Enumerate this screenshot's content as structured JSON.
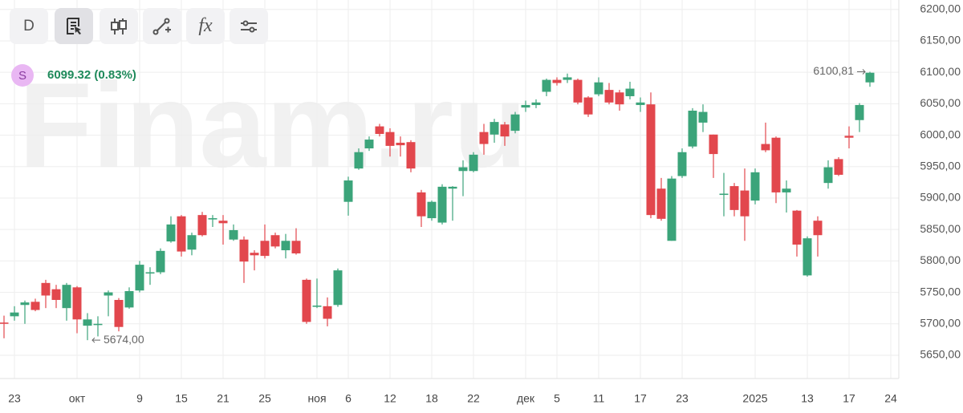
{
  "toolbar": {
    "interval": "D",
    "formula": "fx"
  },
  "watermark": "Finam.ru",
  "header": {
    "symbol": "S",
    "price": "6099.32",
    "change": "(0.83%)"
  },
  "chart_data": {
    "type": "candlestick",
    "categories": [
      null,
      "23",
      null,
      null,
      null,
      null,
      null,
      "окт",
      null,
      null,
      null,
      null,
      null,
      "9",
      null,
      null,
      null,
      "15",
      null,
      null,
      null,
      "21",
      null,
      null,
      null,
      "25",
      null,
      null,
      null,
      null,
      "ноя",
      null,
      null,
      "6",
      null,
      null,
      null,
      "12",
      null,
      null,
      null,
      "18",
      null,
      null,
      null,
      "22",
      null,
      null,
      null,
      null,
      "дек",
      null,
      null,
      "5",
      null,
      null,
      null,
      "11",
      null,
      null,
      null,
      "17",
      null,
      null,
      null,
      "23",
      null,
      null,
      null,
      null,
      null,
      null,
      "2025",
      null,
      null,
      null,
      null,
      "13",
      null,
      null,
      null,
      "17",
      null,
      null,
      null,
      "24"
    ],
    "open": [
      5702,
      5712,
      5730,
      5735,
      5765,
      5755,
      5725,
      5758,
      5697,
      5698,
      5745,
      5738,
      5726,
      5753,
      5780,
      5782,
      5831,
      5871,
      5818,
      5873,
      5866,
      5864,
      5834,
      5834,
      5813,
      5832,
      5841,
      5817,
      5832,
      5770,
      5727,
      5728,
      5730,
      5894,
      5947,
      5979,
      6014,
      6005,
      5988,
      5989,
      5909,
      5868,
      5861,
      5915,
      5943,
      5943,
      6005,
      6001,
      6017,
      6007,
      6044,
      6048,
      6069,
      6088,
      6088,
      6088,
      6060,
      6065,
      6072,
      6068,
      6062,
      6048,
      6049,
      5915,
      5832,
      5935,
      5982,
      6020,
      6001,
      5905,
      5919,
      5912,
      5896,
      5986,
      5996,
      5909,
      5880,
      5777,
      5864,
      5924,
      5962,
      5999,
      6024,
      6084,
      null,
      null
    ],
    "high": [
      5713,
      5728,
      5737,
      5740,
      5770,
      5762,
      5765,
      5760,
      5717,
      5712,
      5753,
      5741,
      5758,
      5800,
      5790,
      5820,
      5871,
      5873,
      5845,
      5878,
      5873,
      5873,
      5858,
      5839,
      5817,
      5858,
      5845,
      5843,
      5852,
      5772,
      5772,
      5742,
      5788,
      5934,
      5979,
      5998,
      6018,
      6011,
      5998,
      5992,
      5913,
      5896,
      5922,
      5919,
      5960,
      5973,
      6018,
      6026,
      6021,
      6037,
      6055,
      6057,
      6090,
      6092,
      6098,
      6090,
      6062,
      6092,
      6083,
      6072,
      6085,
      6060,
      6068,
      5932,
      5935,
      5979,
      6043,
      6049,
      6001,
      5940,
      5924,
      5947,
      5947,
      6020,
      5998,
      5928,
      5881,
      5839,
      5871,
      5960,
      5965,
      6014,
      6051,
      6100.81,
      null,
      null
    ],
    "low": [
      5677,
      5705,
      5700,
      5720,
      5725,
      5725,
      5705,
      5685,
      5674,
      5680,
      5712,
      5688,
      5724,
      5750,
      5762,
      5779,
      5829,
      5807,
      5809,
      5839,
      5854,
      5826,
      5832,
      5765,
      5785,
      5804,
      5820,
      5804,
      5810,
      5700,
      5725,
      5696,
      5727,
      5872,
      5945,
      5975,
      5998,
      5966,
      5966,
      5941,
      5854,
      5864,
      5858,
      5864,
      5903,
      5941,
      5969,
      5988,
      5983,
      6003,
      6037,
      6043,
      6062,
      6079,
      6083,
      6049,
      6029,
      6062,
      6049,
      6039,
      6057,
      6037,
      5868,
      5864,
      5832,
      5932,
      5979,
      6005,
      5932,
      5871,
      5871,
      5832,
      5890,
      5973,
      5892,
      5877,
      5807,
      5775,
      5807,
      5915,
      5935,
      5979,
      6005,
      6077,
      null,
      null
    ],
    "close": [
      5700,
      5718,
      5734,
      5722,
      5745,
      5738,
      5762,
      5707,
      5707,
      5700,
      5750,
      5695,
      5752,
      5794,
      5782,
      5816,
      5858,
      5815,
      5841,
      5841,
      5868,
      5860,
      5849,
      5799,
      5809,
      5808,
      5823,
      5832,
      5812,
      5703,
      5729,
      5708,
      5785,
      5928,
      5973,
      5993,
      6002,
      5983,
      5984,
      5947,
      5871,
      5894,
      5918,
      5918,
      5949,
      5969,
      5986,
      6021,
      5998,
      6033,
      6048,
      6052,
      6088,
      6083,
      6092,
      6052,
      6033,
      6084,
      6052,
      6049,
      6074,
      6052,
      5873,
      5867,
      5931,
      5973,
      6039,
      6037,
      5970,
      5907,
      5881,
      5871,
      5941,
      5976,
      5909,
      5915,
      5826,
      5836,
      5841,
      5949,
      5937,
      5996,
      6048,
      6099.32,
      null,
      null
    ],
    "up_color": "#3ba47a",
    "down_color": "#e2474d",
    "ylim": [
      5613,
      6215
    ],
    "yticks": [
      {
        "value": 5650,
        "label": "5650,00"
      },
      {
        "value": 5700,
        "label": "5700,00"
      },
      {
        "value": 5750,
        "label": "5750,00"
      },
      {
        "value": 5800,
        "label": "5800,00"
      },
      {
        "value": 5850,
        "label": "5850,00"
      },
      {
        "value": 5900,
        "label": "5900,00"
      },
      {
        "value": 5950,
        "label": "5950,00"
      },
      {
        "value": 6000,
        "label": "6000,00"
      },
      {
        "value": 6050,
        "label": "6050,00"
      },
      {
        "value": 6100,
        "label": "6100,00"
      },
      {
        "value": 6150,
        "label": "6150,00"
      },
      {
        "value": 6200,
        "label": "6200,00"
      }
    ],
    "grid": true,
    "max_label": {
      "value": 6100.81,
      "label": "6100,81"
    },
    "min_label": {
      "value": 5674,
      "label": "5674,00"
    }
  }
}
